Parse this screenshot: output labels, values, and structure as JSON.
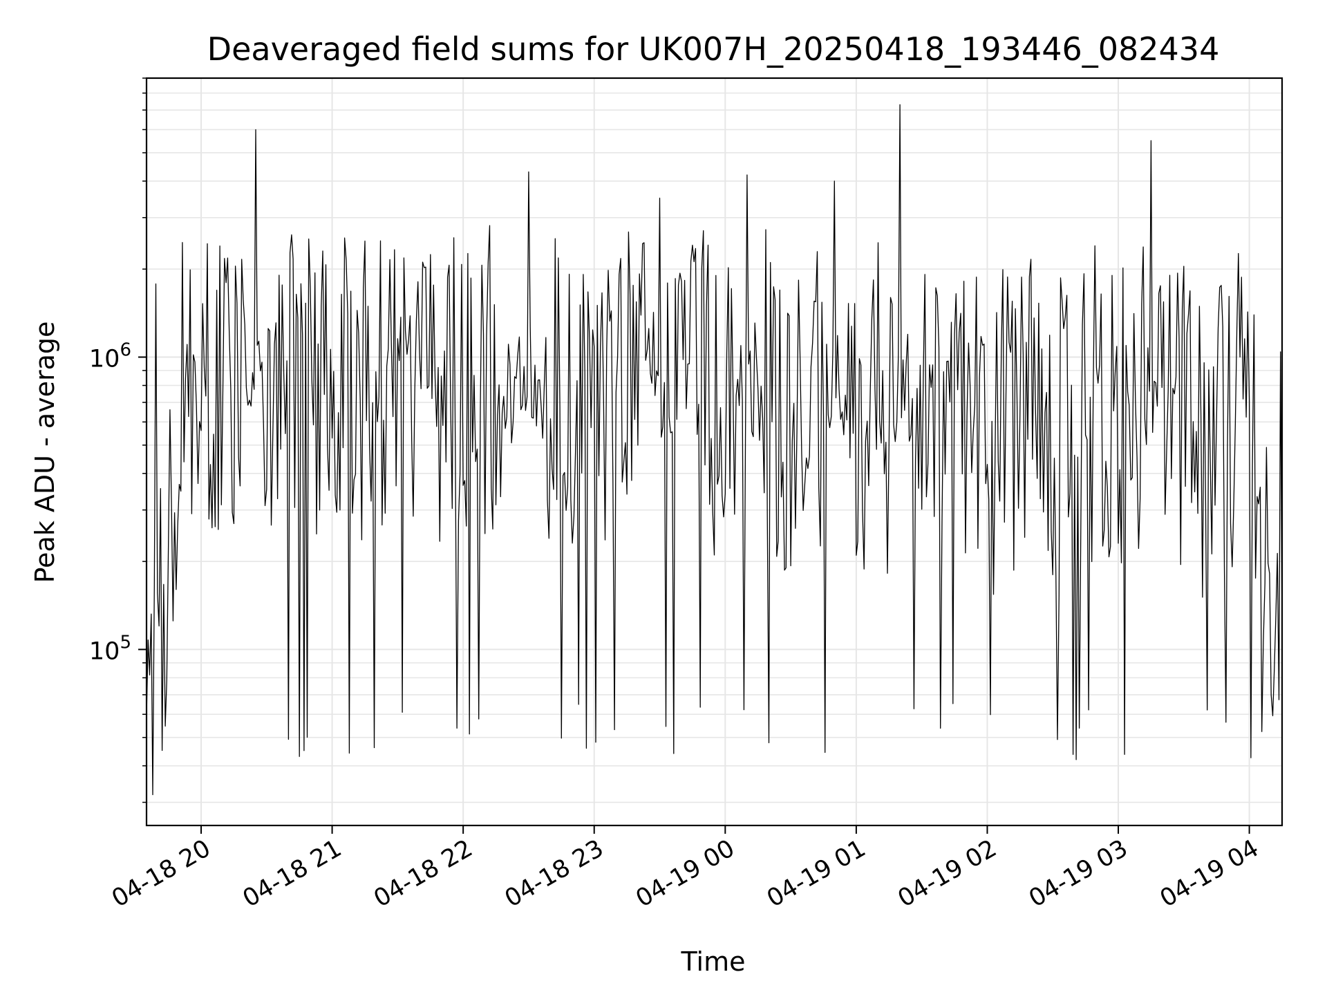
{
  "chart_data": {
    "type": "line",
    "title": "Deaveraged field sums for UK007H_20250418_193446_082434",
    "xlabel": "Time",
    "ylabel": "Peak ADU - average",
    "yscale": "log",
    "xlim": [
      "2025-04-18 19:35",
      "2025-04-19 04:15"
    ],
    "ylim": [
      25000,
      9000000
    ],
    "grid": true,
    "x_ticks": [
      {
        "label": "04-18 20",
        "time": "2025-04-18 20:00"
      },
      {
        "label": "04-18 21",
        "time": "2025-04-18 21:00"
      },
      {
        "label": "04-18 22",
        "time": "2025-04-18 22:00"
      },
      {
        "label": "04-18 23",
        "time": "2025-04-18 23:00"
      },
      {
        "label": "04-19 00",
        "time": "2025-04-19 00:00"
      },
      {
        "label": "04-19 01",
        "time": "2025-04-19 01:00"
      },
      {
        "label": "04-19 02",
        "time": "2025-04-19 02:00"
      },
      {
        "label": "04-19 03",
        "time": "2025-04-19 03:00"
      },
      {
        "label": "04-19 04",
        "time": "2025-04-19 04:00"
      }
    ],
    "y_ticks": [
      {
        "base": "10",
        "exp": "5",
        "value": 100000
      },
      {
        "base": "10",
        "exp": "6",
        "value": 1000000
      }
    ],
    "line_color": "#000000",
    "grid_color": "#e6e6e6",
    "series": [
      {
        "x": [
          "2025-04-18 19:35",
          "2025-04-18 19:40",
          "2025-04-18 19:45",
          "2025-04-18 19:50",
          "2025-04-18 19:55",
          "2025-04-18 20:00",
          "2025-04-18 20:10",
          "2025-04-18 20:15",
          "2025-04-18 20:20",
          "2025-04-18 20:25",
          "2025-04-18 20:30",
          "2025-04-18 20:40",
          "2025-04-18 20:50",
          "2025-04-18 21:00",
          "2025-04-18 21:10",
          "2025-04-18 21:20",
          "2025-04-18 21:30",
          "2025-04-18 21:40",
          "2025-04-18 21:50",
          "2025-04-18 22:00",
          "2025-04-18 22:10",
          "2025-04-18 22:15",
          "2025-04-18 22:20",
          "2025-04-18 22:30",
          "2025-04-18 22:40",
          "2025-04-18 22:50",
          "2025-04-18 23:00",
          "2025-04-18 23:10",
          "2025-04-18 23:20",
          "2025-04-18 23:30",
          "2025-04-18 23:40",
          "2025-04-18 23:50",
          "2025-04-19 00:00",
          "2025-04-19 00:10",
          "2025-04-19 00:20",
          "2025-04-19 00:30",
          "2025-04-19 00:40",
          "2025-04-19 00:50",
          "2025-04-19 01:00",
          "2025-04-19 01:10",
          "2025-04-19 01:15",
          "2025-04-19 01:20",
          "2025-04-19 01:30",
          "2025-04-19 01:40",
          "2025-04-19 01:50",
          "2025-04-19 02:00",
          "2025-04-19 02:10",
          "2025-04-19 02:20",
          "2025-04-19 02:30",
          "2025-04-19 02:40",
          "2025-04-19 02:50",
          "2025-04-19 03:00",
          "2025-04-19 03:10",
          "2025-04-19 03:15",
          "2025-04-19 03:20",
          "2025-04-19 03:30",
          "2025-04-19 03:40",
          "2025-04-19 03:50",
          "2025-04-19 04:00",
          "2025-04-19 04:05",
          "2025-04-19 04:10",
          "2025-04-19 04:15"
        ],
        "values": [
          90000,
          130000,
          180000,
          900000,
          1100000,
          800000,
          1300000,
          700000,
          1100000,
          6000000,
          900000,
          1200000,
          1100000,
          1000000,
          800000,
          900000,
          1100000,
          800000,
          1000000,
          900000,
          1200000,
          700000,
          1500000,
          4300000,
          800000,
          1000000,
          900000,
          700000,
          800000,
          3500000,
          600000,
          900000,
          500000,
          4200000,
          700000,
          600000,
          500000,
          4000000,
          500000,
          700000,
          600000,
          7300000,
          600000,
          700000,
          600000,
          500000,
          600000,
          700000,
          500000,
          600000,
          700000,
          600000,
          500000,
          5500000,
          600000,
          700000,
          500000,
          600000,
          700000,
          500000,
          180000,
          110000
        ]
      }
    ]
  }
}
